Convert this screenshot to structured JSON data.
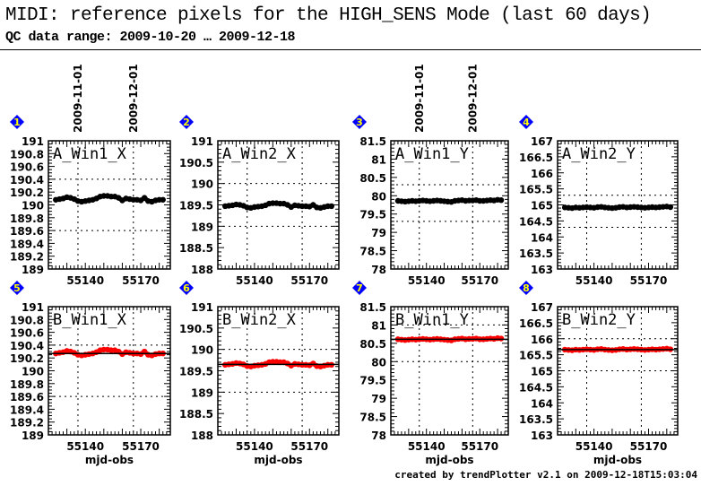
{
  "header": {
    "title": "MIDI: reference pixels for the HIGH_SENS Mode (last 60 days)",
    "subtitle": "QC data range: 2009-10-20 … 2009-12-18"
  },
  "footer": "created by trendPlotter v2.1 on 2009-12-18T15:03:04",
  "colors": {
    "top_row_points": "#000000",
    "bottom_row_points": "#ff0000",
    "badge": "#0000ff",
    "badge_text": "#ffff00"
  },
  "chart_data": {
    "type": "scatter",
    "xlabel": "mjd-obs",
    "xlim": [
      55120,
      55186
    ],
    "x_ticks": [
      55140,
      55170
    ],
    "date_markers": [
      {
        "label": "2009-11-01",
        "x": 55136
      },
      {
        "label": "2009-12-01",
        "x": 55166
      }
    ],
    "x": [
      55124,
      55126,
      55128,
      55130,
      55132,
      55134,
      55136,
      55138,
      55140,
      55142,
      55144,
      55146,
      55148,
      55150,
      55152,
      55154,
      55156,
      55158,
      55160,
      55162,
      55164,
      55166,
      55168,
      55170,
      55172,
      55174,
      55176,
      55178,
      55180,
      55182
    ],
    "panels": [
      {
        "badge": "1",
        "label": "A_Win1_X",
        "row": "top",
        "ylim": [
          189,
          191
        ],
        "ytick_step": 0.2,
        "ytick_labels": [
          "189",
          "189.2",
          "189.4",
          "189.6",
          "189.8",
          "190",
          "190.2",
          "190.4",
          "190.6",
          "190.8",
          "191"
        ],
        "grid_y": [
          189.6,
          190.4
        ],
        "show_dates": true,
        "values": [
          190.08,
          190.09,
          190.1,
          190.12,
          190.11,
          190.09,
          190.06,
          190.05,
          190.06,
          190.07,
          190.08,
          190.1,
          190.13,
          190.14,
          190.14,
          190.13,
          190.13,
          190.11,
          190.07,
          190.1,
          190.09,
          190.08,
          190.08,
          190.07,
          190.11,
          190.06,
          190.05,
          190.07,
          190.08,
          190.08
        ]
      },
      {
        "badge": "2",
        "label": "A_Win2_X",
        "row": "top",
        "ylim": [
          188,
          191
        ],
        "ytick_step": 0.5,
        "ytick_labels": [
          "188",
          "188.5",
          "189",
          "189.5",
          "190",
          "190.5",
          "191"
        ],
        "grid_y": [
          189,
          190
        ],
        "show_dates": false,
        "values": [
          189.47,
          189.48,
          189.49,
          189.51,
          189.5,
          189.48,
          189.44,
          189.43,
          189.45,
          189.46,
          189.47,
          189.49,
          189.53,
          189.54,
          189.54,
          189.53,
          189.53,
          189.5,
          189.45,
          189.49,
          189.48,
          189.47,
          189.47,
          189.46,
          189.5,
          189.44,
          189.43,
          189.45,
          189.47,
          189.47
        ]
      },
      {
        "badge": "3",
        "label": "A_Win1_Y",
        "row": "top",
        "ylim": [
          78,
          81.5
        ],
        "ytick_step": 0.5,
        "ytick_labels": [
          "78",
          "78.5",
          "79",
          "79.5",
          "80",
          "80.5",
          "81",
          "81.5"
        ],
        "grid_y": [
          79.3,
          80.3
        ],
        "show_dates": true,
        "values": [
          79.86,
          79.85,
          79.84,
          79.85,
          79.86,
          79.85,
          79.86,
          79.87,
          79.86,
          79.85,
          79.86,
          79.87,
          79.86,
          79.85,
          79.84,
          79.83,
          79.86,
          79.87,
          79.88,
          79.86,
          79.87,
          79.87,
          79.88,
          79.86,
          79.86,
          79.87,
          79.88,
          79.87,
          79.89,
          79.88
        ]
      },
      {
        "badge": "4",
        "label": "A_Win2_Y",
        "row": "top",
        "ylim": [
          163,
          167
        ],
        "ytick_step": 0.5,
        "ytick_labels": [
          "163",
          "163.5",
          "164",
          "164.5",
          "165",
          "165.5",
          "166",
          "166.5",
          "167"
        ],
        "grid_y": [
          164.3,
          165.3
        ],
        "show_dates": false,
        "values": [
          164.92,
          164.91,
          164.9,
          164.92,
          164.91,
          164.92,
          164.93,
          164.92,
          164.91,
          164.93,
          164.94,
          164.92,
          164.91,
          164.9,
          164.91,
          164.93,
          164.94,
          164.92,
          164.93,
          164.94,
          164.93,
          164.92,
          164.91,
          164.92,
          164.93,
          164.92,
          164.93,
          164.94,
          164.95,
          164.93
        ]
      },
      {
        "badge": "5",
        "label": "B_Win1_X",
        "row": "bottom",
        "ylim": [
          189,
          191
        ],
        "ytick_step": 0.2,
        "ytick_labels": [
          "189",
          "189.2",
          "189.4",
          "189.6",
          "189.8",
          "190",
          "190.2",
          "190.4",
          "190.6",
          "190.8",
          "191"
        ],
        "grid_y": [
          189.6,
          190.4
        ],
        "reference": 190.27,
        "show_dates": false,
        "values": [
          190.27,
          190.28,
          190.29,
          190.31,
          190.3,
          190.28,
          190.25,
          190.24,
          190.25,
          190.26,
          190.27,
          190.29,
          190.32,
          190.33,
          190.33,
          190.32,
          190.32,
          190.3,
          190.26,
          190.29,
          190.28,
          190.27,
          190.27,
          190.26,
          190.3,
          190.25,
          190.24,
          190.26,
          190.27,
          190.27
        ]
      },
      {
        "badge": "6",
        "label": "B_Win2_X",
        "row": "bottom",
        "ylim": [
          188,
          191
        ],
        "ytick_step": 0.5,
        "ytick_labels": [
          "188",
          "188.5",
          "189",
          "189.5",
          "190",
          "190.5",
          "191"
        ],
        "grid_y": [
          189,
          190
        ],
        "reference": 189.65,
        "show_dates": false,
        "values": [
          189.64,
          189.65,
          189.66,
          189.68,
          189.67,
          189.65,
          189.61,
          189.6,
          189.62,
          189.63,
          189.64,
          189.66,
          189.7,
          189.71,
          189.71,
          189.7,
          189.7,
          189.67,
          189.62,
          189.66,
          189.65,
          189.64,
          189.64,
          189.63,
          189.67,
          189.61,
          189.6,
          189.62,
          189.64,
          189.64
        ]
      },
      {
        "badge": "7",
        "label": "B_Win1_Y",
        "row": "bottom",
        "ylim": [
          78,
          81.5
        ],
        "ytick_step": 0.5,
        "ytick_labels": [
          "78",
          "78.5",
          "79",
          "79.5",
          "80",
          "80.5",
          "81",
          "81.5"
        ],
        "grid_y": [
          80,
          81
        ],
        "reference": 80.61,
        "show_dates": false,
        "values": [
          80.61,
          80.6,
          80.59,
          80.6,
          80.61,
          80.6,
          80.61,
          80.62,
          80.61,
          80.6,
          80.61,
          80.62,
          80.61,
          80.6,
          80.59,
          80.58,
          80.61,
          80.62,
          80.63,
          80.61,
          80.62,
          80.62,
          80.63,
          80.61,
          80.61,
          80.62,
          80.63,
          80.62,
          80.64,
          80.63
        ]
      },
      {
        "badge": "8",
        "label": "B_Win2_Y",
        "row": "bottom",
        "ylim": [
          163,
          167
        ],
        "ytick_step": 0.5,
        "ytick_labels": [
          "163",
          "163.5",
          "164",
          "164.5",
          "165",
          "165.5",
          "166",
          "166.5",
          "167"
        ],
        "grid_y": [
          165,
          166
        ],
        "reference": 165.66,
        "show_dates": false,
        "values": [
          165.66,
          165.65,
          165.64,
          165.66,
          165.65,
          165.66,
          165.67,
          165.66,
          165.65,
          165.67,
          165.68,
          165.66,
          165.65,
          165.64,
          165.65,
          165.67,
          165.68,
          165.66,
          165.67,
          165.68,
          165.67,
          165.66,
          165.65,
          165.66,
          165.67,
          165.66,
          165.67,
          165.68,
          165.69,
          165.67
        ]
      }
    ]
  }
}
